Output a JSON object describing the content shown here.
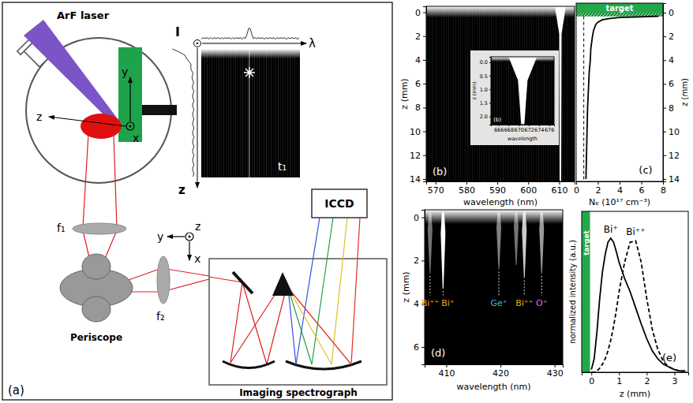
{
  "diagram": {
    "label": "(a)",
    "laser": "ArF laser",
    "lens_1": "f₁",
    "lens_2": "f₂",
    "periscope": "Periscope",
    "detector": "ICCD",
    "spectrograph": "Imaging spectrograph",
    "chamber_axes": [
      "z",
      "y",
      "x"
    ],
    "spectrograph_axes": [
      "z",
      "y",
      "x"
    ],
    "inset": {
      "intensity": "I",
      "wavelength": "λ",
      "position": "z",
      "time": "t₁"
    }
  },
  "chart_data": [
    {
      "type": "spectral_image",
      "label": "(b)",
      "xlabel": "wavelength (nm)",
      "ylabel": "z (mm)",
      "xlim": [
        567,
        615
      ],
      "xticks": [
        570,
        580,
        590,
        600,
        610
      ],
      "ylim": [
        -0.5,
        14.2
      ],
      "yticks": [
        0,
        2,
        4,
        6,
        8,
        10,
        12,
        14
      ],
      "lines": [
        {
          "wavelength": 610.4,
          "z_end": 14.2,
          "intensity": 1
        }
      ]
    },
    {
      "type": "spectral_image",
      "label": "(b)",
      "xlabel": "wavelength",
      "ylabel": "z (mm)",
      "xlim": [
        664.5,
        677
      ],
      "xticks": [
        666,
        668,
        670,
        672,
        674,
        676
      ],
      "ylim": [
        -0.2,
        2.3
      ],
      "yticks": [
        {
          "value": 0,
          "label": "0.0"
        },
        0.5,
        {
          "value": 1,
          "label": "1.0"
        },
        1.5,
        {
          "value": 2,
          "label": "2.0"
        }
      ],
      "lines": [
        {
          "wavelength": 670.8,
          "z_end": 2.3,
          "intensity": 1
        }
      ]
    },
    {
      "type": "line",
      "label": "(c)",
      "xlabel": "Nₑ (10¹⁷ cm⁻³)",
      "ylabel": "z (mm)",
      "xlim": [
        0,
        8
      ],
      "xticks": [
        0,
        2,
        4,
        6,
        8
      ],
      "ylim": [
        -0.8,
        14.2
      ],
      "yticks": [
        0,
        2,
        4,
        6,
        8,
        10,
        12,
        14
      ],
      "target": {
        "label": "target",
        "range": [
          -0.8,
          0.3
        ]
      },
      "vline": 0.7,
      "color": "#000000",
      "line_style": "solid",
      "x": [
        7.6,
        6.0,
        4.0,
        3.0,
        2.4,
        2.0,
        1.8,
        1.6,
        1.5,
        1.35,
        1.3,
        1.2,
        1.15,
        1.1,
        1.05,
        1.0,
        0.95,
        0.9
      ],
      "y": [
        0.3,
        0.35,
        0.4,
        0.5,
        0.6,
        0.8,
        1.0,
        1.5,
        2,
        3,
        4,
        5,
        6,
        7,
        8,
        10,
        12,
        14
      ]
    },
    {
      "type": "spectral_image",
      "label": "(d)",
      "xlabel": "wavelength (nm)",
      "ylabel": "z (mm)",
      "xlim": [
        406,
        431.5
      ],
      "xticks": [
        410,
        420,
        430
      ],
      "ylim": [
        -0.35,
        6.8
      ],
      "yticks": [
        0,
        2,
        4,
        6
      ],
      "lines": [
        {
          "wavelength": 407.0,
          "z_end": 2.6,
          "intensity": 0.45,
          "label": "Bi⁺⁺",
          "color": "#e6a817"
        },
        {
          "wavelength": 409.4,
          "z_end": 3.3,
          "intensity": 1,
          "label": "Bi⁺",
          "color": "#e6a817"
        },
        {
          "wavelength": 419.7,
          "z_end": 2.4,
          "intensity": 0.5,
          "label": "Ge⁺",
          "color": "#3fb4e6"
        },
        {
          "wavelength": 422.9,
          "z_end": 2.2,
          "intensity": 0.45
        },
        {
          "wavelength": 424.4,
          "z_end": 2.8,
          "intensity": 0.8,
          "label": "Bi⁺⁺",
          "color": "#e6a817"
        },
        {
          "wavelength": 427.6,
          "z_end": 2.6,
          "intensity": 0.6,
          "label": "O⁺",
          "color": "#e060e0"
        }
      ]
    },
    {
      "type": "line",
      "label": "(e)",
      "xlabel": "z (mm)",
      "ylabel": "normalized intensity (a.u.)",
      "xlim": [
        -0.35,
        3.5
      ],
      "xticks": [
        0,
        1,
        2,
        3
      ],
      "ylim": [
        0,
        1.2
      ],
      "tick_labels": "x",
      "target": {
        "label": "target",
        "range": [
          -0.35,
          -0.05
        ]
      },
      "x": [
        0,
        0.1,
        0.2,
        0.3,
        0.4,
        0.5,
        0.6,
        0.7,
        0.8,
        0.9,
        1.0,
        1.2,
        1.4,
        1.6,
        1.8,
        2.0,
        2.2,
        2.4,
        2.6,
        2.8,
        3.0,
        3.2,
        3.4
      ],
      "series": [
        {
          "name": "Bi⁺",
          "color": "#000000",
          "line_style": "solid",
          "values": [
            0.02,
            0.1,
            0.3,
            0.55,
            0.75,
            0.88,
            0.97,
            1.0,
            0.97,
            0.9,
            0.82,
            0.7,
            0.6,
            0.48,
            0.36,
            0.25,
            0.16,
            0.1,
            0.06,
            0.04,
            0.02,
            0.01,
            0.01
          ]
        },
        {
          "name": "Bi⁺⁺",
          "color": "#000000",
          "line_style": "dashed",
          "values": [
            0,
            0,
            0.01,
            0.03,
            0.06,
            0.1,
            0.16,
            0.24,
            0.34,
            0.46,
            0.6,
            0.82,
            0.97,
            0.98,
            0.82,
            0.55,
            0.32,
            0.17,
            0.08,
            0.04,
            0.02,
            0.01,
            0.01
          ]
        }
      ]
    }
  ]
}
